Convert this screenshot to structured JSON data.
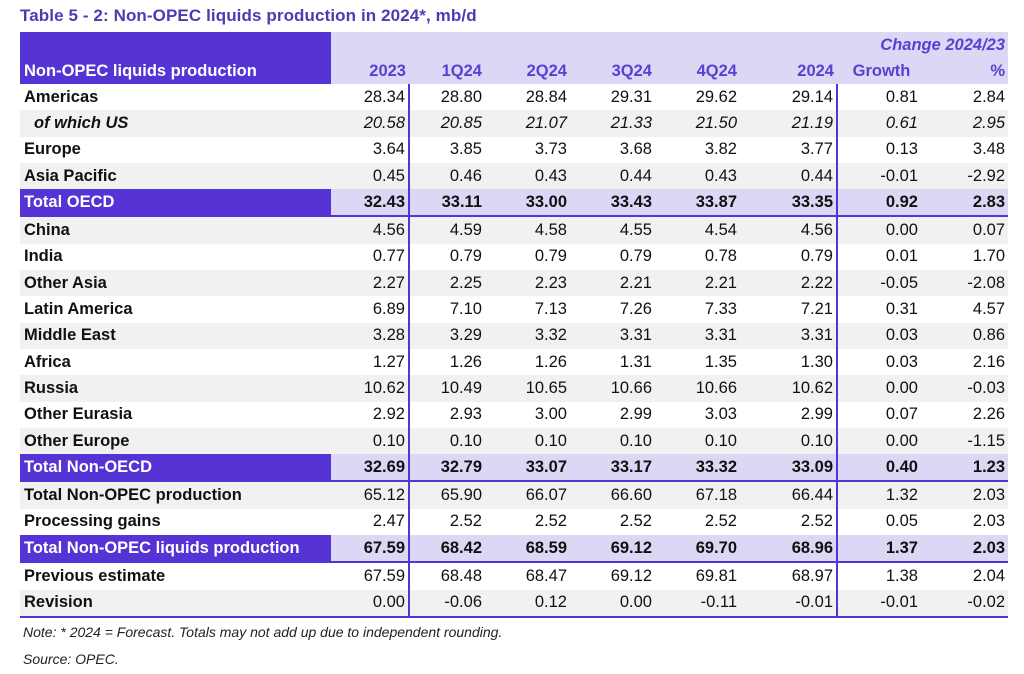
{
  "title": "Table 5 - 2: Non-OPEC liquids production in 2024*, mb/d",
  "header": {
    "label": "Non-OPEC liquids production",
    "change_group": "Change 2024/23",
    "columns": [
      "2023",
      "1Q24",
      "2Q24",
      "3Q24",
      "4Q24",
      "2024",
      "Growth",
      "%"
    ]
  },
  "rows": [
    {
      "label": "Americas",
      "values": [
        "28.34",
        "28.80",
        "28.84",
        "29.31",
        "29.62",
        "29.14",
        "0.81",
        "2.84"
      ]
    },
    {
      "label": "of which US",
      "italic": true,
      "values": [
        "20.58",
        "20.85",
        "21.07",
        "21.33",
        "21.50",
        "21.19",
        "0.61",
        "2.95"
      ]
    },
    {
      "label": "Europe",
      "values": [
        "3.64",
        "3.85",
        "3.73",
        "3.68",
        "3.82",
        "3.77",
        "0.13",
        "3.48"
      ]
    },
    {
      "label": "Asia Pacific",
      "values": [
        "0.45",
        "0.46",
        "0.43",
        "0.44",
        "0.43",
        "0.44",
        "-0.01",
        "-2.92"
      ]
    },
    {
      "label": "Total OECD",
      "total": true,
      "values": [
        "32.43",
        "33.11",
        "33.00",
        "33.43",
        "33.87",
        "33.35",
        "0.92",
        "2.83"
      ]
    },
    {
      "label": "China",
      "values": [
        "4.56",
        "4.59",
        "4.58",
        "4.55",
        "4.54",
        "4.56",
        "0.00",
        "0.07"
      ]
    },
    {
      "label": "India",
      "values": [
        "0.77",
        "0.79",
        "0.79",
        "0.79",
        "0.78",
        "0.79",
        "0.01",
        "1.70"
      ]
    },
    {
      "label": "Other Asia",
      "values": [
        "2.27",
        "2.25",
        "2.23",
        "2.21",
        "2.21",
        "2.22",
        "-0.05",
        "-2.08"
      ]
    },
    {
      "label": "Latin America",
      "values": [
        "6.89",
        "7.10",
        "7.13",
        "7.26",
        "7.33",
        "7.21",
        "0.31",
        "4.57"
      ]
    },
    {
      "label": "Middle East",
      "values": [
        "3.28",
        "3.29",
        "3.32",
        "3.31",
        "3.31",
        "3.31",
        "0.03",
        "0.86"
      ]
    },
    {
      "label": "Africa",
      "values": [
        "1.27",
        "1.26",
        "1.26",
        "1.31",
        "1.35",
        "1.30",
        "0.03",
        "2.16"
      ]
    },
    {
      "label": "Russia",
      "values": [
        "10.62",
        "10.49",
        "10.65",
        "10.66",
        "10.66",
        "10.62",
        "0.00",
        "-0.03"
      ]
    },
    {
      "label": "Other Eurasia",
      "values": [
        "2.92",
        "2.93",
        "3.00",
        "2.99",
        "3.03",
        "2.99",
        "0.07",
        "2.26"
      ]
    },
    {
      "label": "Other Europe",
      "values": [
        "0.10",
        "0.10",
        "0.10",
        "0.10",
        "0.10",
        "0.10",
        "0.00",
        "-1.15"
      ]
    },
    {
      "label": "Total Non-OECD",
      "total": true,
      "values": [
        "32.69",
        "32.79",
        "33.07",
        "33.17",
        "33.32",
        "33.09",
        "0.40",
        "1.23"
      ]
    },
    {
      "label": "Total Non-OPEC production",
      "values": [
        "65.12",
        "65.90",
        "66.07",
        "66.60",
        "67.18",
        "66.44",
        "1.32",
        "2.03"
      ]
    },
    {
      "label": "Processing gains",
      "values": [
        "2.47",
        "2.52",
        "2.52",
        "2.52",
        "2.52",
        "2.52",
        "0.05",
        "2.03"
      ]
    },
    {
      "label": "Total Non-OPEC liquids production",
      "total": true,
      "values": [
        "67.59",
        "68.42",
        "68.59",
        "69.12",
        "69.70",
        "68.96",
        "1.37",
        "2.03"
      ]
    },
    {
      "label": "Previous estimate",
      "values": [
        "67.59",
        "68.48",
        "68.47",
        "69.12",
        "69.81",
        "68.97",
        "1.38",
        "2.04"
      ]
    },
    {
      "label": "Revision",
      "last": true,
      "values": [
        "0.00",
        "-0.06",
        "0.12",
        "0.00",
        "-0.11",
        "-0.01",
        "-0.01",
        "-0.02"
      ]
    }
  ],
  "note": "Note: * 2024 = Forecast. Totals may not add up due to independent rounding.",
  "source": "Source: OPEC.",
  "colors": {
    "accent": "#5533d4",
    "header_bg": "#dcd7f5",
    "title": "#4b3cb4",
    "stripe": "#f1f1f1"
  }
}
